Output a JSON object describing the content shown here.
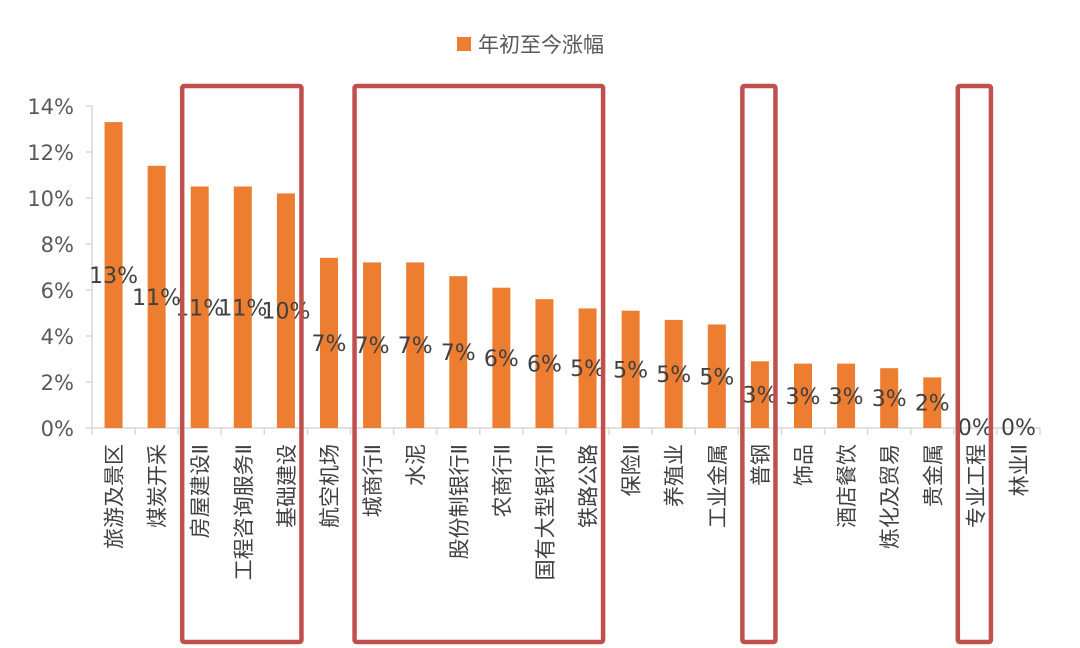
{
  "chart_data": {
    "type": "bar",
    "title": "",
    "xlabel": "",
    "ylabel": "",
    "ylim": [
      0,
      0.14
    ],
    "yticks": [
      "0%",
      "2%",
      "4%",
      "6%",
      "8%",
      "10%",
      "12%",
      "14%"
    ],
    "legend": {
      "position": "top",
      "entries": [
        "年初至今涨幅"
      ]
    },
    "grid": false,
    "categories": [
      "旅游及景区",
      "煤炭开采",
      "房屋建设Ⅱ",
      "工程咨询服务Ⅱ",
      "基础建设",
      "航空机场",
      "城商行Ⅱ",
      "水泥",
      "股份制银行Ⅱ",
      "农商行Ⅱ",
      "国有大型银行Ⅱ",
      "铁路公路",
      "保险Ⅱ",
      "养殖业",
      "工业金属",
      "普钢",
      "饰品",
      "酒店餐饮",
      "炼化及贸易",
      "贵金属",
      "专业工程",
      "林业Ⅱ"
    ],
    "series": [
      {
        "name": "年初至今涨幅",
        "color": "#ED7D31",
        "values": [
          0.133,
          0.114,
          0.105,
          0.105,
          0.102,
          0.074,
          0.072,
          0.072,
          0.066,
          0.061,
          0.056,
          0.052,
          0.051,
          0.047,
          0.045,
          0.029,
          0.028,
          0.028,
          0.026,
          0.022,
          0.0,
          0.0
        ],
        "data_labels": [
          "13%",
          "11%",
          "11%",
          "11%",
          "10%",
          "7%",
          "7%",
          "7%",
          "7%",
          "6%",
          "6%",
          "5%",
          "5%",
          "5%",
          "5%",
          "3%",
          "3%",
          "3%",
          "3%",
          "2%",
          "0%",
          "0%"
        ]
      }
    ],
    "annotations": {
      "highlight_color": "#C0504D",
      "highlight_groups": [
        [
          "房屋建设Ⅱ",
          "工程咨询服务Ⅱ",
          "基础建设"
        ],
        [
          "城商行Ⅱ",
          "水泥",
          "股份制银行Ⅱ",
          "农商行Ⅱ",
          "国有大型银行Ⅱ",
          "铁路公路"
        ],
        [
          "普钢"
        ],
        [
          "专业工程"
        ]
      ]
    }
  }
}
